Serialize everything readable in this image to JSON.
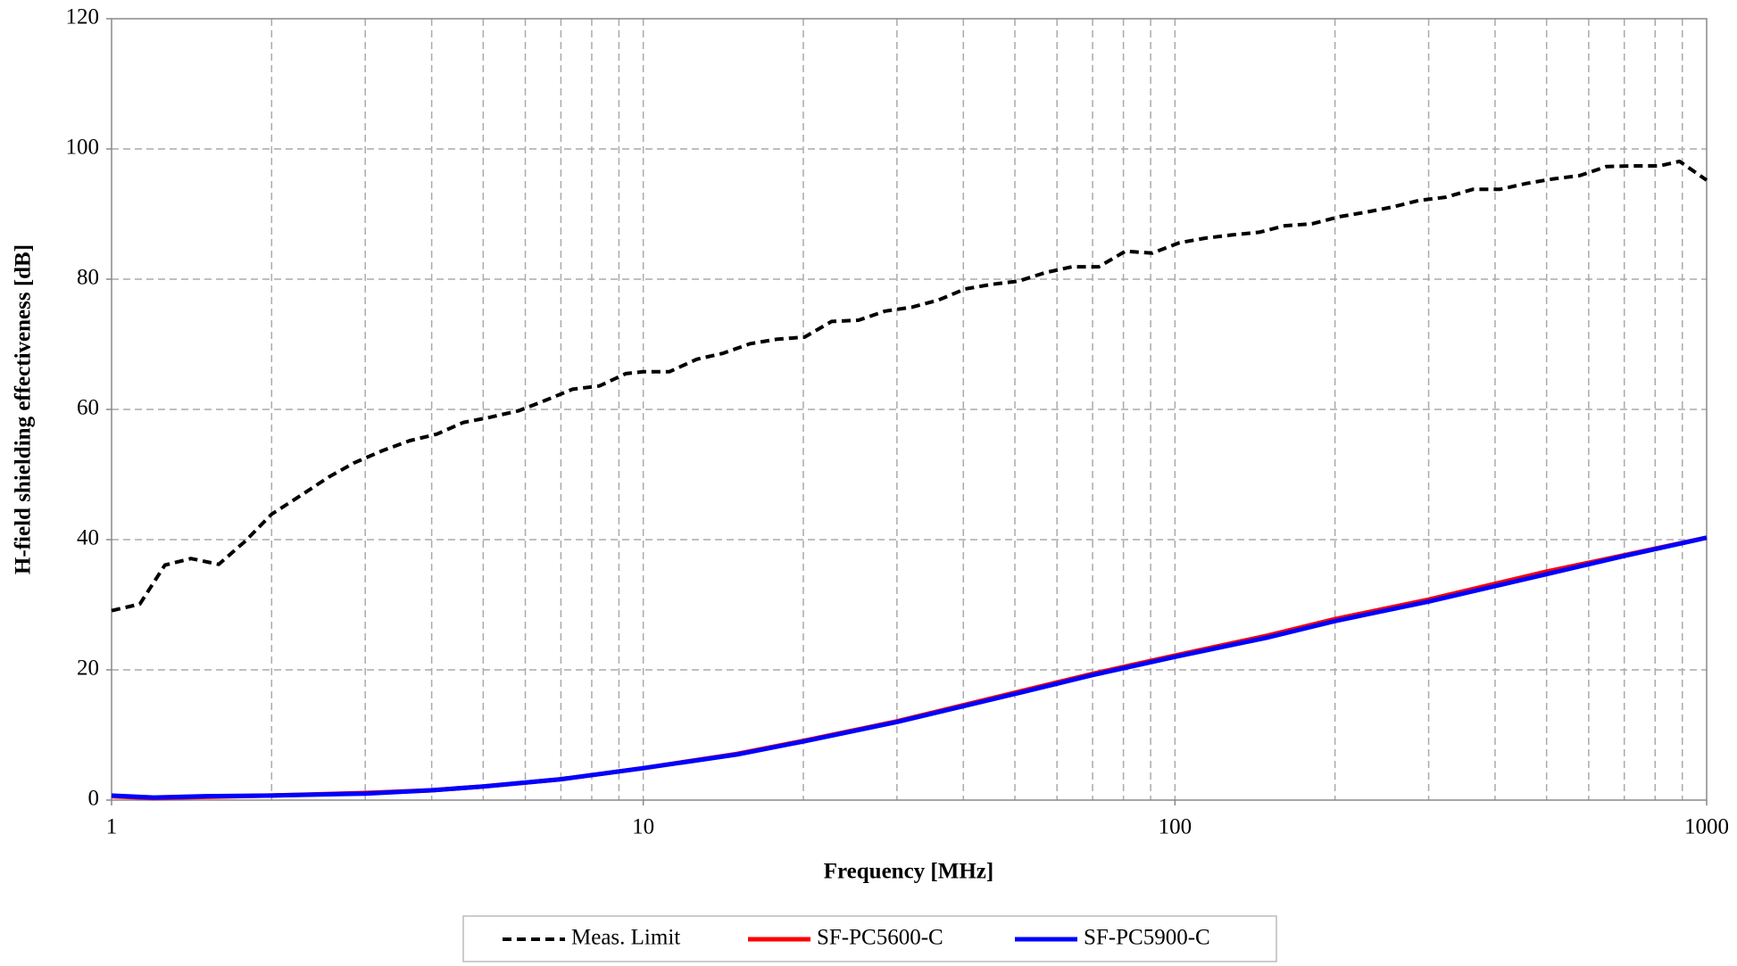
{
  "chart_data": {
    "type": "line",
    "xlabel": "Frequency [MHz]",
    "ylabel": "H-field shielding effectiveness [dB]",
    "xscale": "log",
    "xlim": [
      1,
      1000
    ],
    "xticks": [
      1,
      10,
      100,
      1000
    ],
    "xminor": [
      2,
      3,
      4,
      5,
      6,
      7,
      8,
      9,
      20,
      30,
      40,
      50,
      60,
      70,
      80,
      90,
      200,
      300,
      400,
      500,
      600,
      700,
      800,
      900
    ],
    "ylim": [
      0,
      120
    ],
    "yticks": [
      0,
      20,
      40,
      60,
      80,
      100,
      120
    ],
    "grid": true,
    "legend": "bottom",
    "series": [
      {
        "name": "Meas. Limit",
        "color": "#000000",
        "dash": true,
        "x": [
          1,
          1.13,
          1.26,
          1.41,
          1.59,
          1.78,
          2,
          2.27,
          2.56,
          2.86,
          3.24,
          3.64,
          4.09,
          4.59,
          5.15,
          5.83,
          6.55,
          7.36,
          8.27,
          9.27,
          10,
          11.2,
          12.6,
          14.1,
          15.9,
          17.9,
          20.1,
          22.6,
          25.4,
          28.5,
          32,
          35.9,
          40.3,
          45.2,
          50.8,
          57,
          64,
          71.9,
          80.7,
          90.6,
          102,
          114,
          128,
          144,
          161,
          181,
          204,
          229,
          257,
          288,
          324,
          363,
          408,
          458,
          514,
          577,
          648,
          727,
          816,
          889,
          1000
        ],
        "values": [
          29.1,
          30.1,
          36.1,
          37.1,
          36.2,
          39.7,
          43.9,
          46.8,
          49.6,
          51.8,
          53.7,
          55.2,
          56.2,
          58,
          58.8,
          59.8,
          61.4,
          63.1,
          63.6,
          65.5,
          65.8,
          65.8,
          67.7,
          68.6,
          70.1,
          70.8,
          71.1,
          73.5,
          73.7,
          75.1,
          75.7,
          76.8,
          78.5,
          79.2,
          79.7,
          81,
          81.9,
          81.9,
          84.3,
          84,
          85.6,
          86.3,
          86.8,
          87.2,
          88.2,
          88.5,
          89.6,
          90.3,
          91.1,
          92.1,
          92.6,
          93.8,
          93.8,
          94.7,
          95.4,
          95.9,
          97.3,
          97.4,
          97.4,
          98.1,
          95.2
        ]
      },
      {
        "name": "SF-PC5600-C",
        "color": "#ff0000",
        "dash": false,
        "x": [
          1,
          1.2,
          1.5,
          2,
          3,
          4,
          5,
          7,
          10,
          15,
          20,
          30,
          50,
          70,
          100,
          150,
          200,
          300,
          500,
          700,
          1000
        ],
        "values": [
          0.6,
          0.3,
          0.5,
          0.7,
          1.1,
          1.5,
          2.1,
          3.2,
          4.9,
          7.1,
          9.1,
          12.1,
          16.5,
          19.4,
          22.2,
          25.3,
          27.8,
          30.8,
          35.1,
          37.6,
          40.3
        ]
      },
      {
        "name": "SF-PC5900-C",
        "color": "#0000ff",
        "dash": false,
        "x": [
          1,
          1.2,
          1.5,
          2,
          3,
          4,
          5,
          7,
          10,
          15,
          20,
          30,
          50,
          70,
          100,
          150,
          200,
          300,
          500,
          700,
          1000
        ],
        "values": [
          0.7,
          0.4,
          0.6,
          0.7,
          1.0,
          1.5,
          2.1,
          3.2,
          4.9,
          7.0,
          9.0,
          12.0,
          16.3,
          19.2,
          22.0,
          25.0,
          27.5,
          30.5,
          34.7,
          37.5,
          40.3
        ]
      }
    ]
  }
}
